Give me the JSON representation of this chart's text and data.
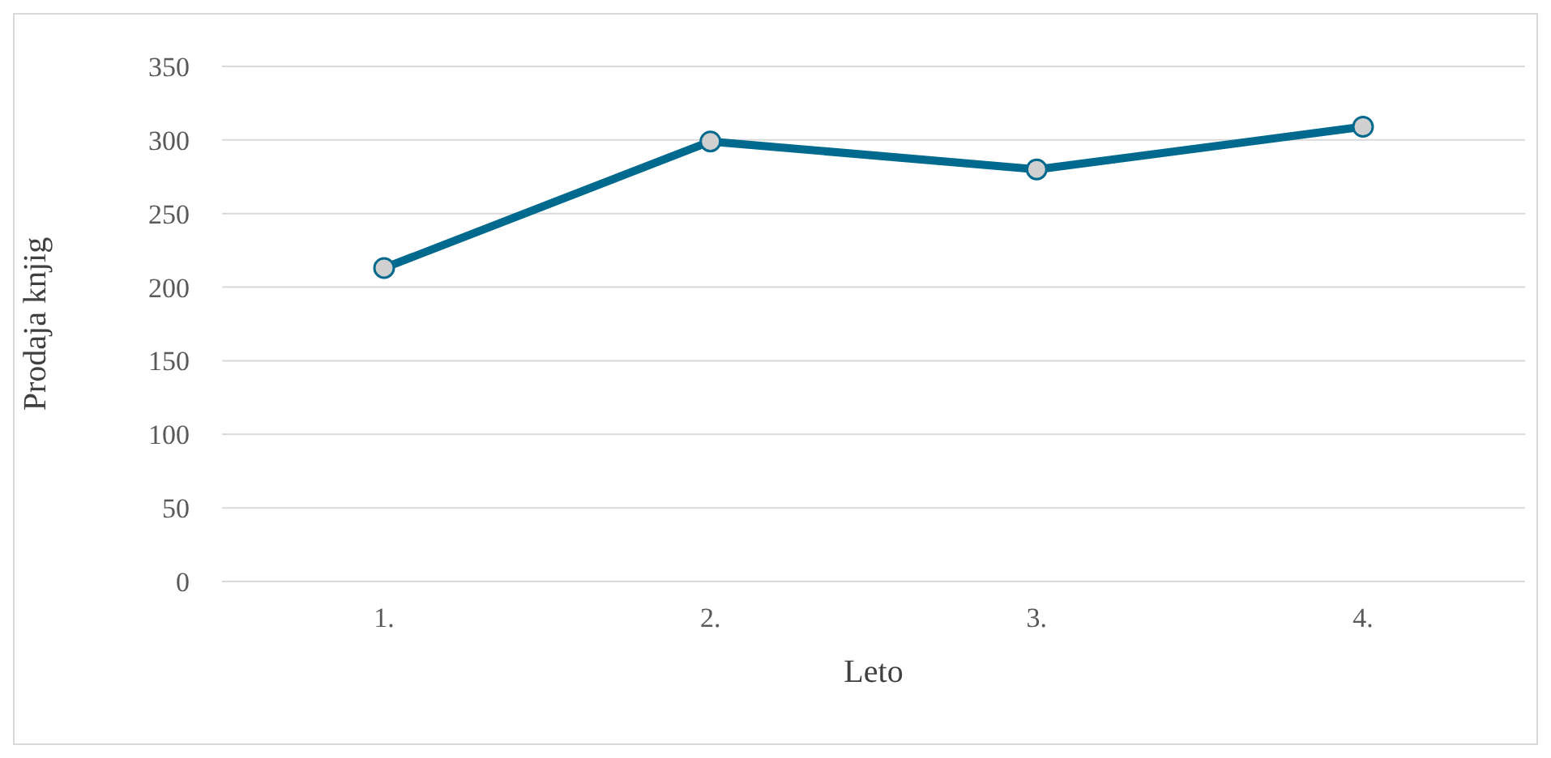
{
  "chart_data": {
    "type": "line",
    "xlabel": "Leto",
    "ylabel": "Prodaja knjig",
    "categories": [
      "1.",
      "2.",
      "3.",
      "4."
    ],
    "series": [
      {
        "color": "#006a8e",
        "values": [
          213,
          299,
          280,
          309
        ]
      }
    ],
    "ylim": [
      0,
      350
    ],
    "yticks": [
      0,
      50,
      100,
      150,
      200,
      250,
      300,
      350
    ],
    "grid": "y",
    "legend": false,
    "marker": "circle",
    "line_style": "solid"
  }
}
